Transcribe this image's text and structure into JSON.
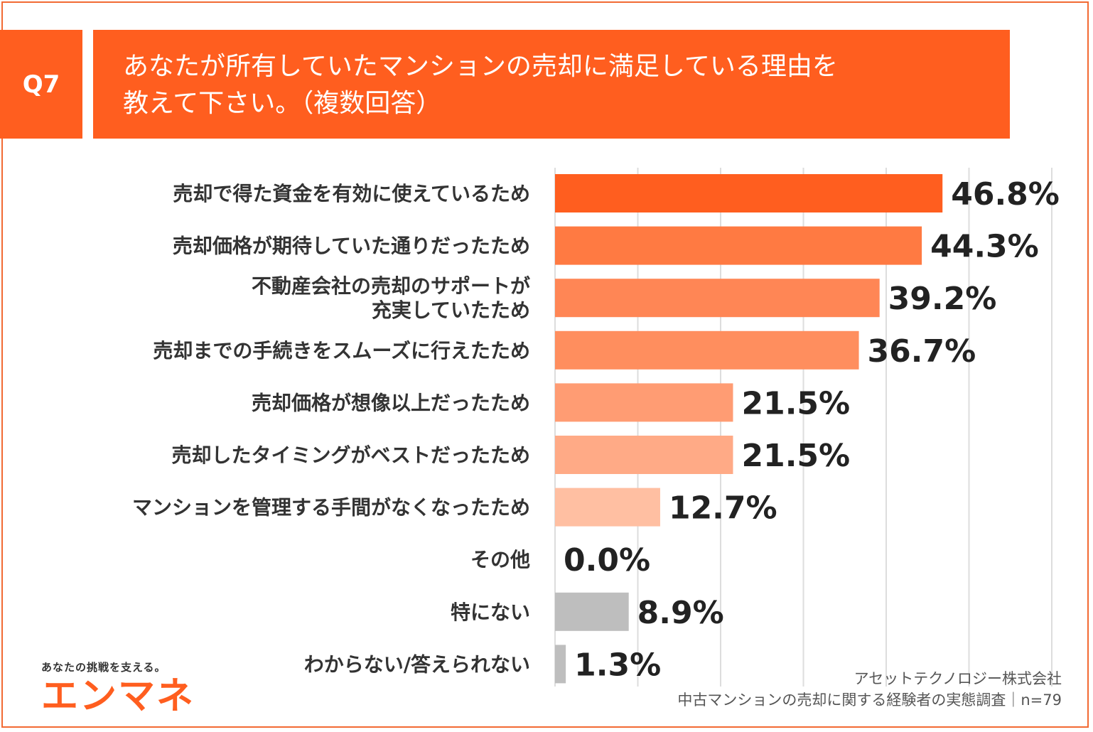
{
  "question": {
    "badge": "Q7",
    "title_lines": [
      "あなたが所有していたマンションの売却に満足している理由を",
      "教えて下さい。（複数回答）"
    ]
  },
  "chart_data": {
    "type": "bar",
    "orientation": "horizontal",
    "title": "あなたが所有していたマンションの売却に満足している理由を教えて下さい。（複数回答）",
    "xlim": [
      0,
      60
    ],
    "grid": true,
    "unit": "%",
    "categories": [
      [
        "売却で得た資金を有効に使えているため"
      ],
      [
        "売却価格が期待していた通りだったため"
      ],
      [
        "不動産会社の売却のサポートが",
        "充実していたため"
      ],
      [
        "売却までの手続きをスムーズに行えたため"
      ],
      [
        "売却価格が想像以上だったため"
      ],
      [
        "売却したタイミングがベストだったため"
      ],
      [
        "マンションを管理する手間がなくなったため"
      ],
      [
        "その他"
      ],
      [
        "特にない"
      ],
      [
        "わからない/答えられない"
      ]
    ],
    "values": [
      46.8,
      44.3,
      39.2,
      36.7,
      21.5,
      21.5,
      12.7,
      0.0,
      8.9,
      1.3
    ],
    "value_labels": [
      "46.8%",
      "44.3%",
      "39.2%",
      "36.7%",
      "21.5%",
      "21.5%",
      "12.7%",
      "0.0%",
      "8.9%",
      "1.3%"
    ],
    "bar_colors": [
      "#FF5E1F",
      "#FF7A42",
      "#FF8655",
      "#FF8E5E",
      "#FF9C73",
      "#FFAA86",
      "#FFBFA2",
      "#FFD4C2",
      "#BEBEBE",
      "#BEBEBE"
    ],
    "grid_color": "#DDDDDD"
  },
  "brand": {
    "tagline": "あなたの挑戦を支える。",
    "logo_text": "エンマネ"
  },
  "source": {
    "line1": "アセットテクノロジー株式会社",
    "line2": "中古マンションの売却に関する経験者の実態調査｜n=79"
  }
}
